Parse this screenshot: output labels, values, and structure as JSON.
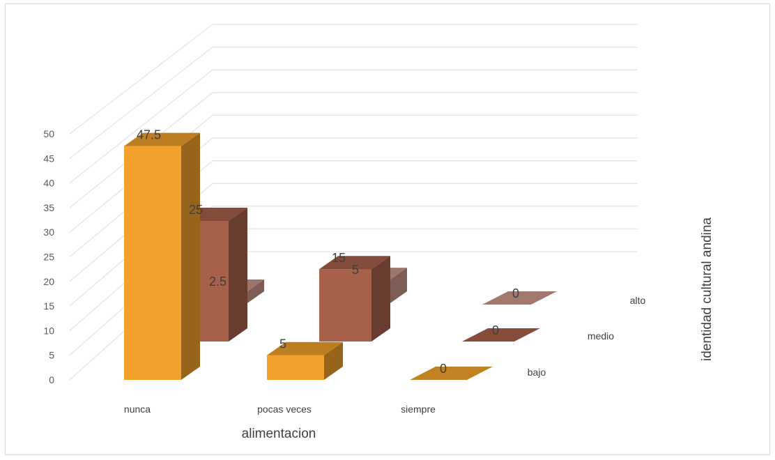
{
  "chart_data": {
    "type": "bar",
    "style": "3d-column",
    "xlabel": "alimentacion",
    "zlabel": "identidad cultural andina",
    "categories": [
      "nunca",
      "pocas veces",
      "siempre"
    ],
    "series": [
      {
        "name": "bajo",
        "values": [
          47.5,
          5,
          0
        ],
        "color": "#f2a22c"
      },
      {
        "name": "medio",
        "values": [
          25,
          15,
          0
        ],
        "color": "#a7604a"
      },
      {
        "name": "alto",
        "values": [
          2.5,
          5,
          0
        ],
        "color": "#c9968a"
      }
    ],
    "ylim": [
      0,
      50
    ],
    "yticks": [
      0,
      5,
      10,
      15,
      20,
      25,
      30,
      35,
      40,
      45,
      50
    ],
    "grid": true
  }
}
